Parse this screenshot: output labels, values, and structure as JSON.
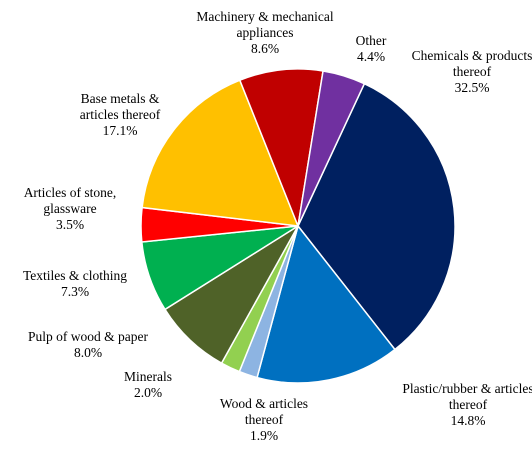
{
  "chart_data": {
    "type": "pie",
    "categories": [
      "Chemicals & products thereof",
      "Plastic/rubber & articles thereof",
      "Wood & articles thereof",
      "Minerals",
      "Pulp of wood & paper",
      "Textiles & clothing",
      "Articles of stone, glassware",
      "Base metals & articles thereof",
      "Machinery & mechanical appliances",
      "Other"
    ],
    "values": [
      32.5,
      14.8,
      1.9,
      2.0,
      8.0,
      7.3,
      3.5,
      17.1,
      8.6,
      4.4
    ],
    "value_labels": [
      "32.5%",
      "14.8%",
      "1.9%",
      "2.0%",
      "8.0%",
      "7.3%",
      "3.5%",
      "17.1%",
      "8.6%",
      "4.4%"
    ],
    "colors": [
      "#002060",
      "#0070c0",
      "#8db4e2",
      "#92d050",
      "#4f6228",
      "#00b050",
      "#ff0000",
      "#ffc000",
      "#c00000",
      "#7030a0"
    ]
  }
}
